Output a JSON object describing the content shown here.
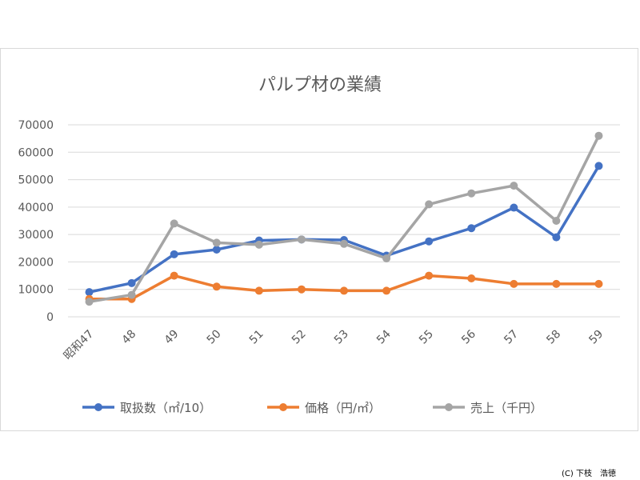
{
  "chart_data": {
    "type": "line",
    "title": "パルプ材の業績",
    "categories": [
      "昭和47",
      "48",
      "49",
      "50",
      "51",
      "52",
      "53",
      "54",
      "55",
      "56",
      "57",
      "58",
      "59"
    ],
    "ylim": [
      0,
      70000
    ],
    "yticks": [
      0,
      10000,
      20000,
      30000,
      40000,
      50000,
      60000,
      70000
    ],
    "grid": true,
    "legend_position": "bottom",
    "series": [
      {
        "name": "取扱数（㎡/10）",
        "color": "#4472c4",
        "values": [
          9000,
          12300,
          22800,
          24500,
          27800,
          28200,
          28000,
          22300,
          27500,
          32300,
          39800,
          29000,
          55000
        ]
      },
      {
        "name": "価格（円/㎡）",
        "color": "#ed7d31",
        "values": [
          6500,
          6500,
          15000,
          11000,
          9500,
          10000,
          9500,
          9500,
          15000,
          14000,
          12000,
          12000,
          12000
        ]
      },
      {
        "name": "売上（千円）",
        "color": "#a5a5a5",
        "values": [
          5500,
          8000,
          34000,
          27000,
          26300,
          28200,
          26600,
          21300,
          41000,
          45000,
          47800,
          35000,
          66000
        ]
      }
    ]
  },
  "credit": "(C) 下枝　浩徳"
}
